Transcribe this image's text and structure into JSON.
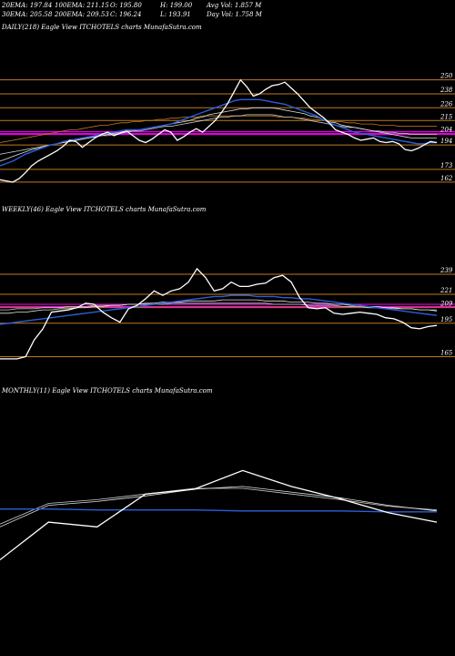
{
  "header": {
    "ema20": "20EMA: 197.84",
    "ema100": "100EMA: 211.15",
    "open": "O: 195.80",
    "high": "H: 199.00",
    "avg_vol": "Avg Vol: 1.857 M",
    "ema30": "30EMA: 205.58",
    "ema200": "200EMA: 209.53",
    "close": "C: 196.24",
    "low": "L: 193.91",
    "day_vol": "Day Vol: 1.758 M"
  },
  "chart_data": [
    {
      "type": "line",
      "title": "DAILY(218) Eagle  View  ITCHOTELS charts MunafaSutra.com",
      "y_ticks": [
        250,
        238,
        226,
        215,
        204,
        194,
        173,
        162
      ],
      "ylim": [
        158,
        256
      ],
      "level_colors": [
        "#c0781e",
        "#ff00ff"
      ],
      "series": [
        {
          "color": "#ffffff",
          "values": [
            164,
            163,
            162,
            165,
            170,
            176,
            180,
            183,
            186,
            189,
            193,
            198,
            197,
            192,
            196,
            200,
            203,
            205,
            202,
            204,
            206,
            202,
            198,
            196,
            199,
            203,
            207,
            205,
            198,
            201,
            205,
            208,
            205,
            210,
            215,
            222,
            230,
            240,
            250,
            244,
            236,
            238,
            242,
            245,
            246,
            248,
            243,
            238,
            232,
            226,
            222,
            218,
            213,
            207,
            205,
            203,
            200,
            198,
            199,
            200,
            197,
            196,
            197,
            195,
            190,
            189,
            191,
            194,
            197,
            196
          ]
        },
        {
          "color": "#2b5fd9",
          "values": [
            176,
            178,
            180,
            183,
            186,
            188,
            190,
            192,
            194,
            195,
            197,
            198,
            199,
            200,
            201,
            202,
            203,
            204,
            205,
            206,
            207,
            207,
            207,
            208,
            209,
            210,
            211,
            212,
            214,
            216,
            218,
            220,
            222,
            224,
            226,
            228,
            230,
            232,
            233,
            233,
            233,
            233,
            232,
            231,
            230,
            229,
            227,
            225,
            223,
            221,
            219,
            216,
            213,
            211,
            209,
            207,
            205,
            204,
            203,
            202,
            201,
            200,
            199,
            198,
            197,
            196,
            195,
            195,
            196,
            196
          ]
        },
        {
          "color": "#e0e0e0",
          "values": [
            180,
            182,
            184,
            186,
            188,
            190,
            191,
            193,
            194,
            195,
            196,
            197,
            198,
            199,
            200,
            201,
            202,
            203,
            204,
            205,
            206,
            206,
            207,
            208,
            209,
            210,
            211,
            212,
            213,
            214,
            215,
            217,
            218,
            220,
            221,
            222,
            223,
            224,
            225,
            225,
            226,
            226,
            226,
            226,
            225,
            224,
            223,
            222,
            221,
            219,
            218,
            216,
            214,
            213,
            211,
            210,
            209,
            208,
            207,
            206,
            205,
            204,
            203,
            202,
            201,
            200,
            200,
            200,
            200,
            200
          ]
        },
        {
          "color": "#c8c8c8",
          "values": [
            186,
            187,
            188,
            189,
            190,
            191,
            192,
            193,
            194,
            195,
            196,
            197,
            198,
            199,
            200,
            201,
            202,
            202,
            203,
            204,
            205,
            206,
            206,
            207,
            208,
            209,
            210,
            210,
            211,
            212,
            213,
            214,
            215,
            216,
            217,
            218,
            218,
            219,
            219,
            220,
            220,
            220,
            220,
            220,
            219,
            218,
            218,
            217,
            216,
            215,
            214,
            213,
            212,
            211,
            210,
            209,
            209,
            208,
            207,
            206,
            206,
            205,
            205,
            204,
            204,
            203,
            203,
            203,
            203,
            203
          ]
        },
        {
          "color": "#c0781e",
          "values": [
            196,
            197,
            198,
            199,
            200,
            201,
            202,
            203,
            204,
            205,
            206,
            207,
            207,
            208,
            209,
            210,
            211,
            211,
            212,
            213,
            213,
            214,
            214,
            215,
            215,
            216,
            216,
            217,
            217,
            218,
            218,
            218,
            219,
            219,
            219,
            219,
            219,
            219,
            219,
            219,
            219,
            219,
            219,
            219,
            218,
            218,
            218,
            217,
            217,
            216,
            216,
            215,
            215,
            214,
            214,
            213,
            213,
            212,
            212,
            212,
            211,
            211,
            211,
            210,
            210,
            210,
            210,
            210,
            210,
            210
          ]
        }
      ],
      "levels": [
        {
          "value": 250,
          "color": "#c0781e"
        },
        {
          "value": 238,
          "color": "#c0781e"
        },
        {
          "value": 226,
          "color": "#c0781e"
        },
        {
          "value": 215,
          "color": "#c0781e"
        },
        {
          "value": 205.5,
          "color": "#ff00ff"
        },
        {
          "value": 204,
          "color": "#ff00ff"
        },
        {
          "value": 203,
          "color": "#ff00ff"
        },
        {
          "value": 194,
          "color": "#c0781e"
        },
        {
          "value": 173,
          "color": "#c0781e"
        },
        {
          "value": 162,
          "color": "#c0781e"
        }
      ]
    },
    {
      "type": "line",
      "title": "WEEKLY(46) Eagle  View  ITCHOTELS charts MunafaSutra.com",
      "y_ticks": [
        239,
        221,
        209,
        195,
        165
      ],
      "ylim": [
        158,
        248
      ],
      "series": [
        {
          "color": "#ffffff",
          "values": [
            163,
            163,
            163,
            165,
            180,
            190,
            205,
            206,
            207,
            209,
            213,
            212,
            205,
            200,
            196,
            208,
            211,
            217,
            224,
            220,
            224,
            226,
            232,
            244,
            236,
            224,
            226,
            232,
            228,
            228,
            230,
            231,
            236,
            238,
            232,
            218,
            209,
            208,
            209,
            204,
            203,
            204,
            205,
            204,
            203,
            200,
            199,
            196,
            191,
            190,
            192,
            193
          ]
        },
        {
          "color": "#2b5fd9",
          "values": [
            194,
            195,
            196,
            197,
            198,
            199,
            200,
            201,
            202,
            203,
            204,
            205,
            206,
            207,
            208,
            209,
            210,
            211,
            212,
            213,
            214,
            215,
            216,
            217,
            218,
            219,
            219,
            220,
            220,
            220,
            219,
            219,
            219,
            218,
            218,
            217,
            217,
            216,
            215,
            214,
            213,
            212,
            211,
            210,
            209,
            208,
            207,
            206,
            205,
            204,
            203,
            202
          ]
        },
        {
          "color": "#e0e0e0",
          "values": [
            204,
            204,
            205,
            205,
            206,
            207,
            207,
            208,
            208,
            209,
            209,
            210,
            210,
            211,
            211,
            212,
            212,
            213,
            213,
            214,
            214,
            214,
            215,
            215,
            215,
            215,
            216,
            216,
            216,
            216,
            216,
            215,
            215,
            215,
            214,
            214,
            214,
            213,
            213,
            212,
            212,
            211,
            211,
            210,
            210,
            209,
            209,
            208,
            208,
            207,
            207,
            206
          ]
        },
        {
          "color": "#c8c8c8",
          "values": [
            207,
            207,
            208,
            208,
            208,
            209,
            209,
            209,
            210,
            210,
            210,
            211,
            211,
            211,
            211,
            212,
            212,
            212,
            212,
            212,
            213,
            213,
            213,
            213,
            213,
            213,
            213,
            213,
            213,
            213,
            213,
            213,
            212,
            212,
            212,
            212,
            211,
            211,
            211,
            211,
            210,
            210,
            210,
            209,
            209,
            209,
            208,
            208,
            208,
            207,
            207,
            207
          ]
        }
      ],
      "levels": [
        {
          "value": 239,
          "color": "#c0781e"
        },
        {
          "value": 221,
          "color": "#c0781e"
        },
        {
          "value": 212,
          "color": "#ff00ff"
        },
        {
          "value": 210,
          "color": "#ff00ff"
        },
        {
          "value": 209,
          "color": "#c0781e"
        },
        {
          "value": 195,
          "color": "#c0781e"
        },
        {
          "value": 165,
          "color": "#c0781e"
        }
      ]
    },
    {
      "type": "line",
      "title": "MONTHLY(11) Eagle  View  ITCHOTELS charts MunafaSutra.com",
      "y_ticks": [],
      "ylim": [
        140,
        300
      ],
      "series": [
        {
          "color": "#ffffff",
          "values": [
            160,
            200,
            195,
            230,
            235,
            255,
            238,
            225,
            210,
            200
          ]
        },
        {
          "color": "#2b5fd9",
          "values": [
            214,
            214,
            213,
            213,
            213,
            212,
            212,
            212,
            211,
            211
          ]
        },
        {
          "color": "#e0e0e0",
          "values": [
            195,
            218,
            222,
            228,
            235,
            238,
            232,
            226,
            218,
            212
          ]
        },
        {
          "color": "#c8c8c8",
          "values": [
            198,
            220,
            224,
            230,
            236,
            236,
            230,
            224,
            217,
            213
          ]
        }
      ],
      "levels": []
    }
  ]
}
